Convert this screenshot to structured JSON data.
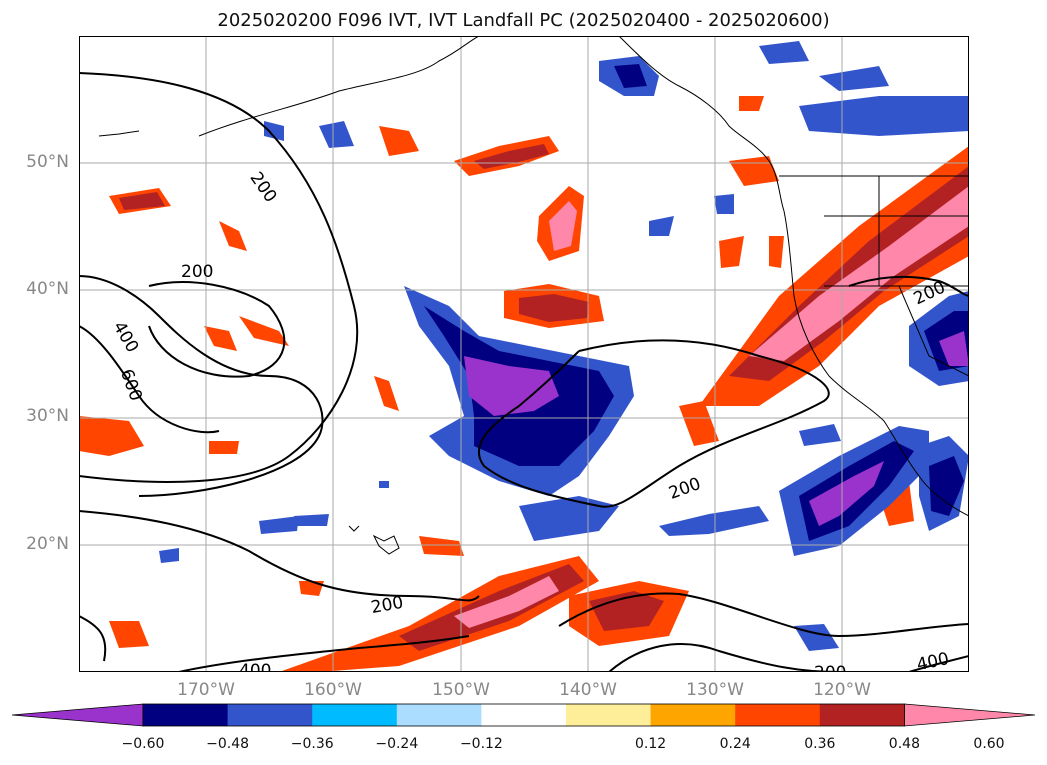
{
  "title": "2025020200 F096 IVT, IVT Landfall PC (2025020400 - 2025020600)",
  "map": {
    "lat_labels": [
      "50°N",
      "40°N",
      "30°N",
      "20°N"
    ],
    "lon_labels": [
      "170°W",
      "160°W",
      "150°W",
      "140°W",
      "130°W",
      "120°W"
    ],
    "contour_labels": [
      "200",
      "200",
      "400",
      "600",
      "200",
      "200",
      "200",
      "400",
      "400",
      "200"
    ]
  },
  "colorbar": {
    "ticks": [
      "−0.60",
      "−0.48",
      "−0.36",
      "−0.24",
      "−0.12",
      "0.12",
      "0.24",
      "0.36",
      "0.48",
      "0.60"
    ],
    "colors": [
      "#9933cc",
      "#000080",
      "#3355cc",
      "#00bbff",
      "#aaddff",
      "#ffffff",
      "#ffee99",
      "#ffa500",
      "#ff4500",
      "#b22222",
      "#ff88aa"
    ]
  }
}
